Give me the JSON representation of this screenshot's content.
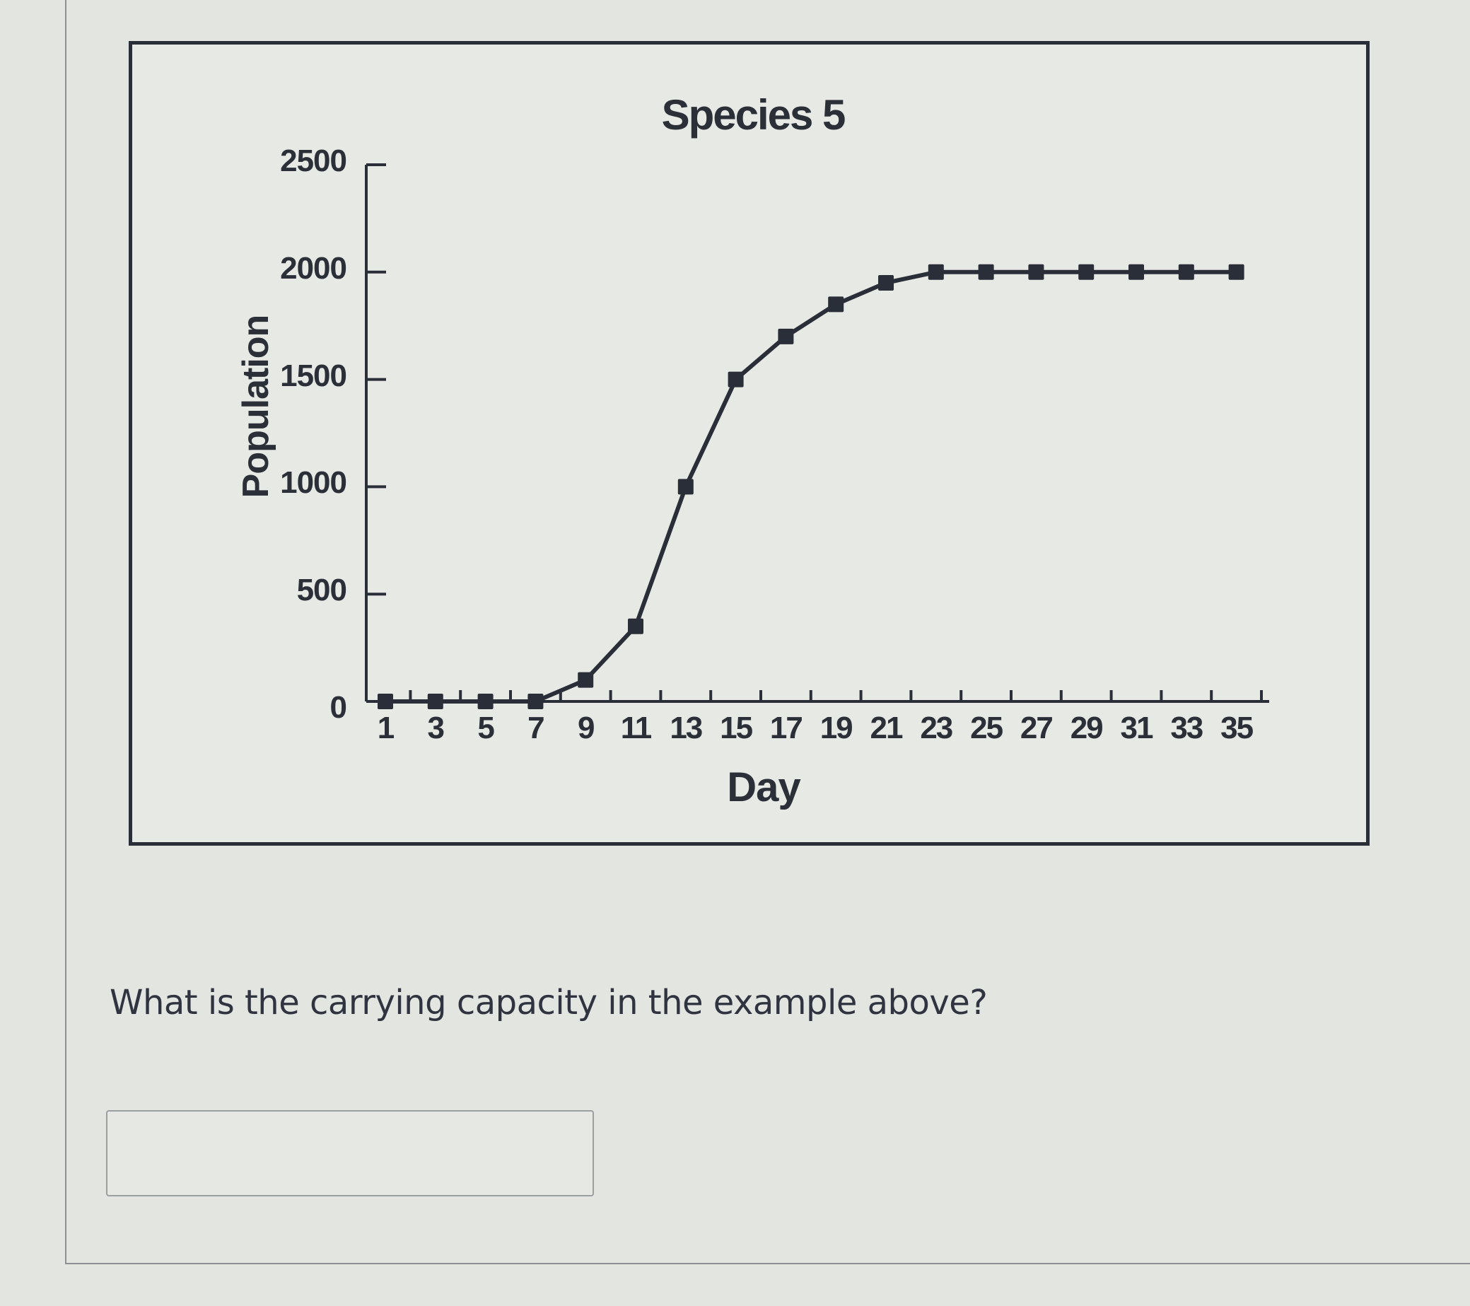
{
  "chart_data": {
    "type": "line",
    "title": "Species 5",
    "xlabel": "Day",
    "ylabel": "Population",
    "x": [
      1,
      3,
      5,
      7,
      9,
      11,
      13,
      15,
      17,
      19,
      21,
      23,
      25,
      27,
      29,
      31,
      33,
      35
    ],
    "series": [
      {
        "name": "Species 5",
        "values": [
          0,
          0,
          0,
          0,
          100,
          350,
          1000,
          1500,
          1700,
          1850,
          1950,
          2000,
          2000,
          2000,
          2000,
          2000,
          2000,
          2000
        ],
        "marker": "square",
        "color": "#2a2e38"
      }
    ],
    "xticks": [
      1,
      3,
      5,
      7,
      9,
      11,
      13,
      15,
      17,
      19,
      21,
      23,
      25,
      27,
      29,
      31,
      33,
      35
    ],
    "yticks": [
      0,
      500,
      1000,
      1500,
      2000,
      2500
    ],
    "xlim": [
      0,
      36
    ],
    "ylim": [
      0,
      2500
    ],
    "grid": false,
    "legend": null
  },
  "chart": {
    "title": "Species 5",
    "x_label": "Day",
    "y_label": "Population",
    "y_ticks": [
      "0",
      "500",
      "1000",
      "1500",
      "2000",
      "2500"
    ],
    "x_ticks": [
      "1",
      "3",
      "5",
      "7",
      "9",
      "11",
      "13",
      "15",
      "17",
      "19",
      "21",
      "23",
      "25",
      "27",
      "29",
      "31",
      "33",
      "35"
    ]
  },
  "question": {
    "text": "What is the carrying capacity in the example above?",
    "answer_value": "",
    "answer_placeholder": ""
  },
  "colors": {
    "background": "#e3e5e0",
    "chart_border": "#2a2e38",
    "line": "#2a2e38",
    "text": "#2b2f38"
  }
}
